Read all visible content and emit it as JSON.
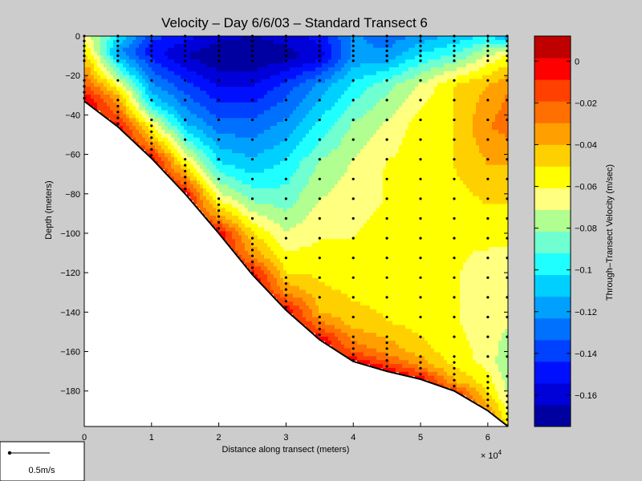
{
  "chart_data": {
    "type": "heatmap",
    "title": "Velocity – Day 6/6/03 – Standard Transect 6",
    "xlabel": "Distance along transect (meters)",
    "ylabel": "Depth (meters)",
    "x_multiplier_label": "× 10",
    "x_multiplier_exponent": "4",
    "xlim": [
      0,
      6.3
    ],
    "ylim": [
      -198,
      0
    ],
    "x_ticks": [
      "0",
      "1",
      "2",
      "3",
      "4",
      "5",
      "6"
    ],
    "y_ticks": [
      "0",
      "−20",
      "−40",
      "−60",
      "−80",
      "−100",
      "−120",
      "−140",
      "−160",
      "−180"
    ],
    "colorbar": {
      "label": "Through–Transect Velocity (m/sec)",
      "clim": [
        -0.175,
        0.012
      ],
      "ticks": [
        "0",
        "−0.02",
        "−0.04",
        "−0.06",
        "−0.08",
        "−0.1",
        "−0.12",
        "−0.14",
        "−0.16"
      ],
      "colors": [
        "#0000a0",
        "#0000d8",
        "#0010ff",
        "#0040ff",
        "#0070ff",
        "#00a0ff",
        "#00d0ff",
        "#20ffff",
        "#70ffd0",
        "#b0ff90",
        "#ffff80",
        "#ffff00",
        "#ffd000",
        "#ffa000",
        "#ff7000",
        "#ff4000",
        "#ff0000",
        "#c00000"
      ]
    },
    "bottom_profile": [
      [
        0,
        -33
      ],
      [
        0.5,
        -46
      ],
      [
        1,
        -62
      ],
      [
        1.5,
        -80
      ],
      [
        2,
        -100
      ],
      [
        2.5,
        -121
      ],
      [
        3,
        -139
      ],
      [
        3.5,
        -154
      ],
      [
        4,
        -165
      ],
      [
        4.5,
        -170
      ],
      [
        5,
        -174
      ],
      [
        5.5,
        -180
      ],
      [
        6,
        -190
      ],
      [
        6.3,
        -198
      ]
    ],
    "station_x": [
      0,
      0.5,
      1,
      1.5,
      2,
      2.5,
      3,
      3.5,
      4,
      4.5,
      5,
      5.5,
      6,
      6.3
    ],
    "field_samples": [
      {
        "x": 0.05,
        "rows": [
          [
            0,
            -0.07
          ],
          [
            -10,
            -0.05
          ],
          [
            -25,
            -0.02
          ],
          [
            -33,
            0
          ]
        ]
      },
      {
        "x": 0.5,
        "rows": [
          [
            0,
            -0.1
          ],
          [
            -8,
            -0.12
          ],
          [
            -20,
            -0.08
          ],
          [
            -30,
            -0.04
          ],
          [
            -40,
            -0.02
          ],
          [
            -46,
            0
          ]
        ]
      },
      {
        "x": 1.0,
        "rows": [
          [
            0,
            -0.14
          ],
          [
            -8,
            -0.15
          ],
          [
            -20,
            -0.13
          ],
          [
            -35,
            -0.1
          ],
          [
            -45,
            -0.06
          ],
          [
            -55,
            -0.03
          ],
          [
            -62,
            0
          ]
        ]
      },
      {
        "x": 1.5,
        "rows": [
          [
            0,
            -0.15
          ],
          [
            -10,
            -0.165
          ],
          [
            -25,
            -0.14
          ],
          [
            -45,
            -0.11
          ],
          [
            -60,
            -0.07
          ],
          [
            -72,
            -0.03
          ],
          [
            -80,
            0
          ]
        ]
      },
      {
        "x": 2.0,
        "rows": [
          [
            0,
            -0.16
          ],
          [
            -10,
            -0.175
          ],
          [
            -25,
            -0.155
          ],
          [
            -45,
            -0.13
          ],
          [
            -65,
            -0.1
          ],
          [
            -80,
            -0.07
          ],
          [
            -90,
            -0.04
          ],
          [
            -100,
            0
          ]
        ]
      },
      {
        "x": 2.5,
        "rows": [
          [
            0,
            -0.165
          ],
          [
            -10,
            -0.175
          ],
          [
            -25,
            -0.155
          ],
          [
            -45,
            -0.13
          ],
          [
            -65,
            -0.11
          ],
          [
            -85,
            -0.08
          ],
          [
            -100,
            -0.05
          ],
          [
            -112,
            -0.03
          ],
          [
            -121,
            0
          ]
        ]
      },
      {
        "x": 3.0,
        "rows": [
          [
            0,
            -0.16
          ],
          [
            -10,
            -0.17
          ],
          [
            -25,
            -0.14
          ],
          [
            -45,
            -0.12
          ],
          [
            -65,
            -0.1
          ],
          [
            -85,
            -0.085
          ],
          [
            -105,
            -0.065
          ],
          [
            -120,
            -0.05
          ],
          [
            -130,
            -0.03
          ],
          [
            -139,
            0
          ]
        ]
      },
      {
        "x": 3.5,
        "rows": [
          [
            0,
            -0.15
          ],
          [
            -10,
            -0.16
          ],
          [
            -25,
            -0.12
          ],
          [
            -45,
            -0.1
          ],
          [
            -65,
            -0.08
          ],
          [
            -85,
            -0.07
          ],
          [
            -105,
            -0.06
          ],
          [
            -125,
            -0.05
          ],
          [
            -140,
            -0.04
          ],
          [
            -148,
            -0.02
          ],
          [
            -154,
            0
          ]
        ]
      },
      {
        "x": 4.0,
        "rows": [
          [
            0,
            -0.12
          ],
          [
            -10,
            -0.12
          ],
          [
            -25,
            -0.1
          ],
          [
            -45,
            -0.08
          ],
          [
            -65,
            -0.07
          ],
          [
            -85,
            -0.065
          ],
          [
            -105,
            -0.06
          ],
          [
            -125,
            -0.055
          ],
          [
            -145,
            -0.045
          ],
          [
            -158,
            -0.025
          ],
          [
            -165,
            0
          ]
        ]
      },
      {
        "x": 4.5,
        "rows": [
          [
            0,
            -0.13
          ],
          [
            -10,
            -0.12
          ],
          [
            -25,
            -0.085
          ],
          [
            -45,
            -0.07
          ],
          [
            -65,
            -0.06
          ],
          [
            -85,
            -0.06
          ],
          [
            -105,
            -0.055
          ],
          [
            -125,
            -0.055
          ],
          [
            -145,
            -0.05
          ],
          [
            -162,
            -0.03
          ],
          [
            -170,
            0
          ]
        ]
      },
      {
        "x": 5.0,
        "rows": [
          [
            0,
            -0.12
          ],
          [
            -10,
            -0.1
          ],
          [
            -25,
            -0.07
          ],
          [
            -45,
            -0.055
          ],
          [
            -65,
            -0.055
          ],
          [
            -85,
            -0.055
          ],
          [
            -105,
            -0.055
          ],
          [
            -125,
            -0.055
          ],
          [
            -145,
            -0.055
          ],
          [
            -160,
            -0.045
          ],
          [
            -168,
            -0.03
          ],
          [
            -174,
            0
          ]
        ]
      },
      {
        "x": 5.5,
        "rows": [
          [
            0,
            -0.11
          ],
          [
            -10,
            -0.09
          ],
          [
            -25,
            -0.05
          ],
          [
            -45,
            -0.05
          ],
          [
            -65,
            -0.05
          ],
          [
            -85,
            -0.055
          ],
          [
            -105,
            -0.06
          ],
          [
            -125,
            -0.06
          ],
          [
            -145,
            -0.06
          ],
          [
            -165,
            -0.055
          ],
          [
            -175,
            -0.04
          ],
          [
            -180,
            -0.01
          ]
        ]
      },
      {
        "x": 6.0,
        "rows": [
          [
            0,
            -0.1
          ],
          [
            -10,
            -0.07
          ],
          [
            -25,
            -0.04
          ],
          [
            -45,
            -0.03
          ],
          [
            -65,
            -0.04
          ],
          [
            -85,
            -0.05
          ],
          [
            -105,
            -0.06
          ],
          [
            -125,
            -0.065
          ],
          [
            -145,
            -0.065
          ],
          [
            -165,
            -0.065
          ],
          [
            -182,
            -0.05
          ],
          [
            -190,
            -0.03
          ]
        ]
      },
      {
        "x": 6.3,
        "rows": [
          [
            0,
            -0.12
          ],
          [
            -10,
            -0.06
          ],
          [
            -25,
            -0.03
          ],
          [
            -45,
            -0.025
          ],
          [
            -65,
            -0.04
          ],
          [
            -85,
            -0.05
          ],
          [
            -105,
            -0.06
          ],
          [
            -125,
            -0.065
          ],
          [
            -145,
            -0.07
          ],
          [
            -165,
            -0.08
          ],
          [
            -185,
            -0.07
          ],
          [
            -198,
            -0.05
          ]
        ]
      }
    ],
    "grid": false,
    "legend_position": "bottom-left",
    "scale_legend_label": "0.5m/s"
  }
}
